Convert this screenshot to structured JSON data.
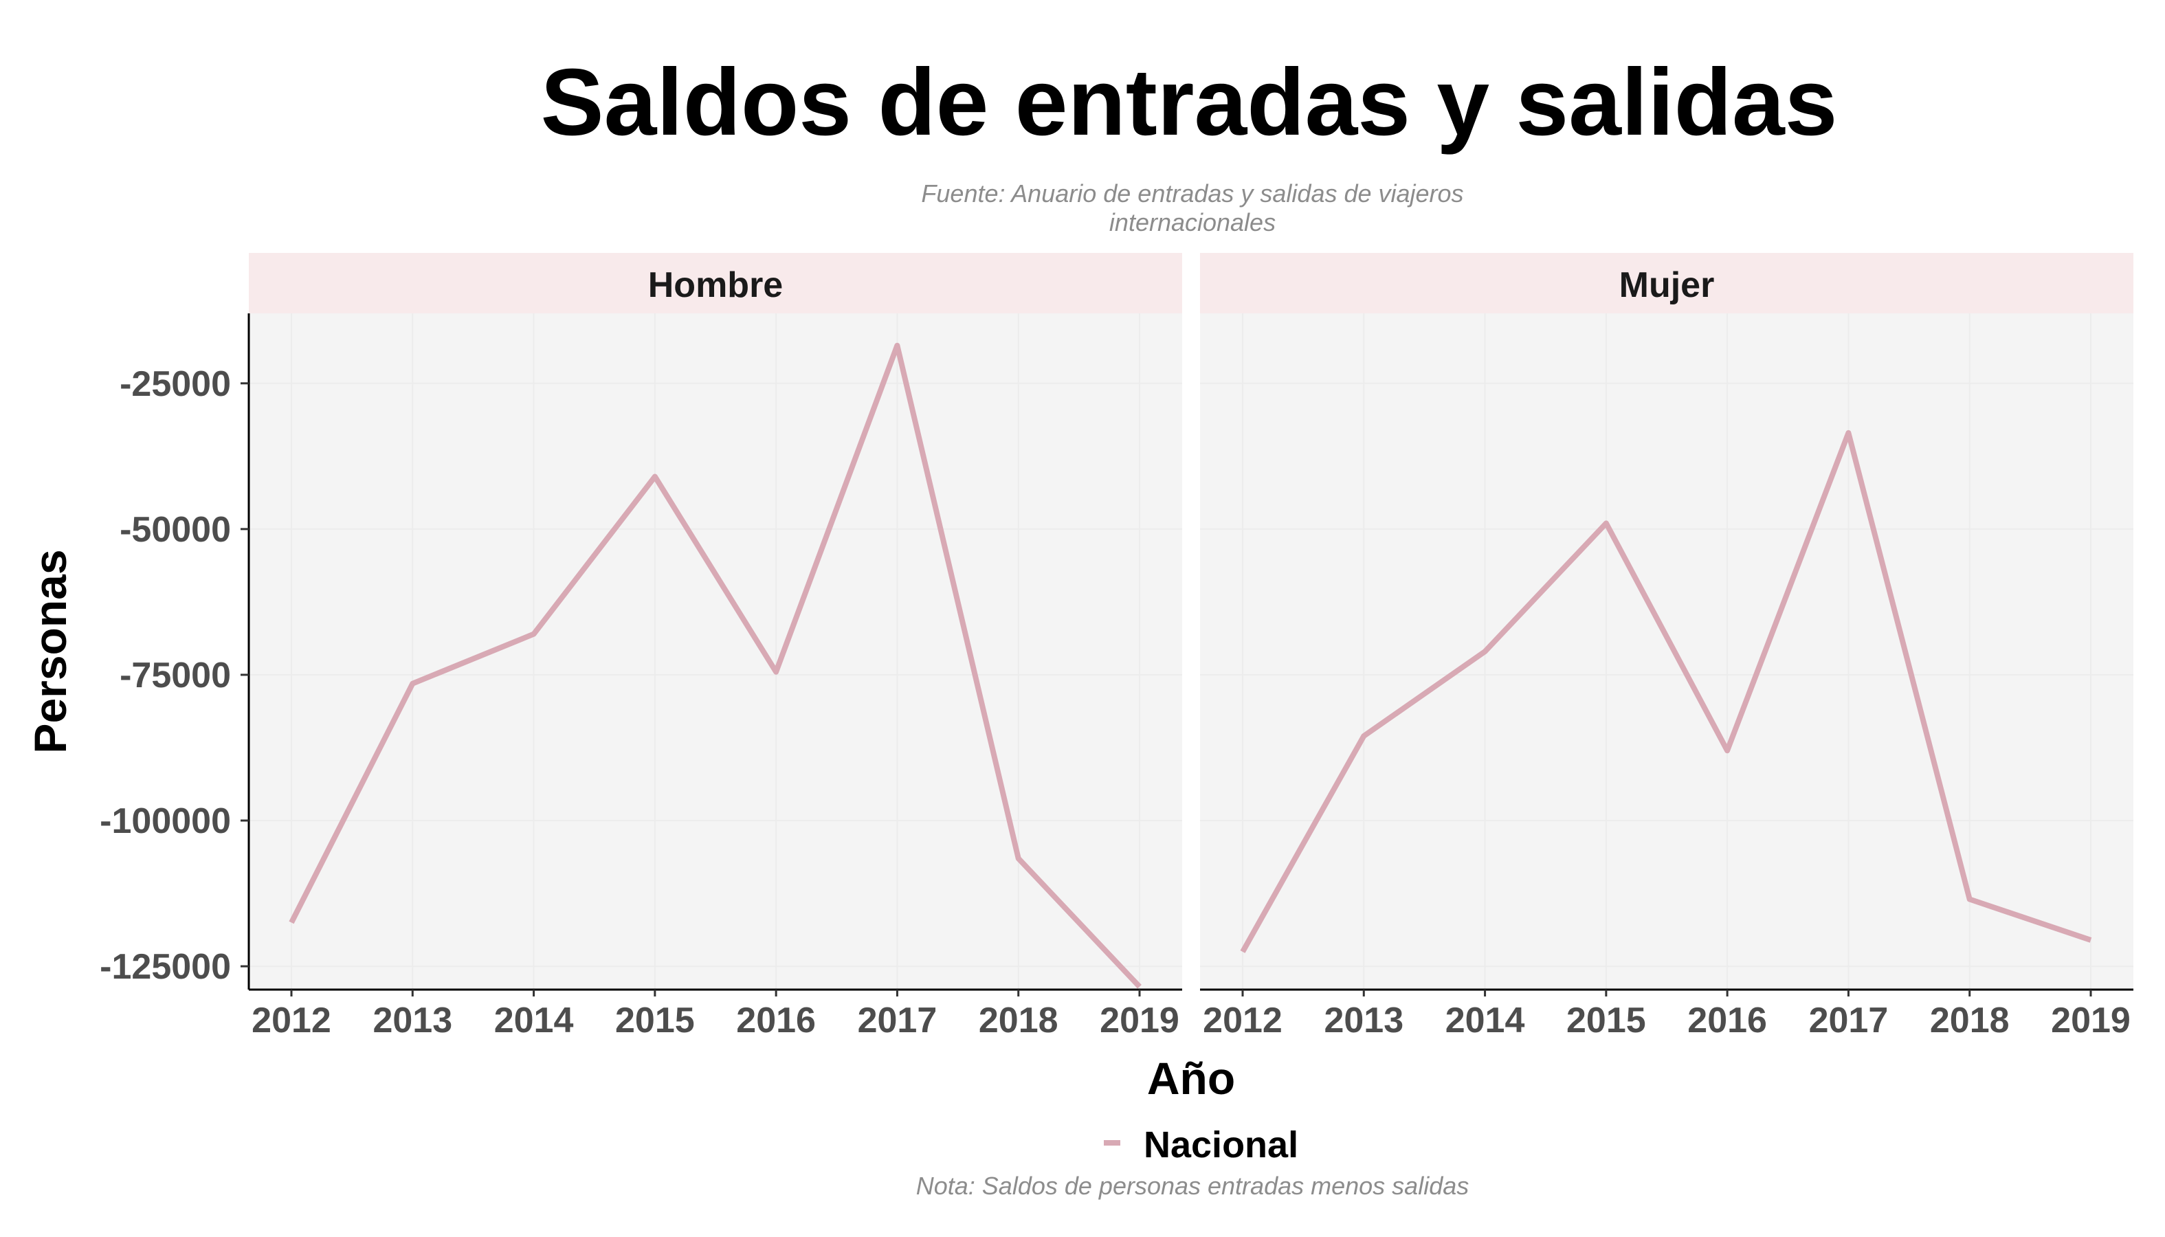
{
  "chart_data": {
    "type": "line",
    "title": "Saldos de entradas y salidas",
    "subtitle_lines": [
      "Fuente: Anuario de entradas y salidas de viajeros",
      "internacionales"
    ],
    "caption": "Nota: Saldos de personas entradas menos salidas",
    "xlabel": "Año",
    "ylabel": "Personas",
    "x": [
      2012,
      2013,
      2014,
      2015,
      2016,
      2017,
      2018,
      2019
    ],
    "x_tick_labels": [
      "2012",
      "2013",
      "2014",
      "2015",
      "2016",
      "2017",
      "2018",
      "2019"
    ],
    "ylim": [
      -129000,
      -13000
    ],
    "y_ticks": [
      -25000,
      -50000,
      -75000,
      -100000,
      -125000
    ],
    "y_tick_labels": [
      "-25000",
      "-50000",
      "-75000",
      "-100000",
      "-125000"
    ],
    "grid": true,
    "legend_position": "bottom",
    "legend_entries": [
      "Nacional"
    ],
    "panels": [
      {
        "label": "Hombre",
        "series": [
          {
            "name": "Nacional",
            "values": [
              -117500,
              -76500,
              -68000,
              -41000,
              -74500,
              -18500,
              -106500,
              -128500
            ]
          }
        ]
      },
      {
        "label": "Mujer",
        "series": [
          {
            "name": "Nacional",
            "values": [
              -122500,
              -85500,
              -71000,
              -49000,
              -88000,
              -33500,
              -113500,
              -120500
            ]
          }
        ]
      }
    ]
  },
  "colors": {
    "series_line": "#d8a9b4",
    "panel_background": "#f4f4f4",
    "strip_background": "#f8eaeb",
    "grid_line": "#ececec",
    "axis_line": "#000000",
    "tick_text": "#4d4d4d",
    "subtitle_text": "#8c8c8c"
  }
}
